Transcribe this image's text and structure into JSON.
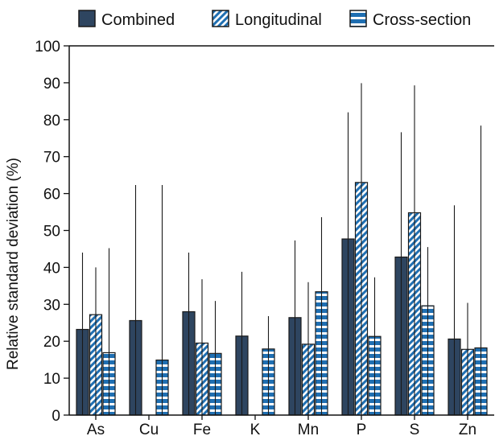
{
  "chart_data": {
    "type": "bar",
    "ylabel": "Relative standard deviation (%)",
    "xlabel": "",
    "ylim": [
      0,
      100
    ],
    "yticks": [
      0,
      10,
      20,
      30,
      40,
      50,
      60,
      70,
      80,
      90,
      100
    ],
    "categories": [
      "As",
      "Cu",
      "Fe",
      "K",
      "Mn",
      "P",
      "S",
      "Zn"
    ],
    "legend_position": "top",
    "series": [
      {
        "name": "Combined",
        "pattern": "solid",
        "color": "#2e4560",
        "values": [
          23.2,
          25.6,
          28.0,
          21.4,
          26.4,
          47.7,
          42.8,
          20.6
        ],
        "error_upper": [
          44.0,
          62.3,
          44.0,
          38.8,
          47.3,
          82.0,
          76.6,
          56.8
        ]
      },
      {
        "name": "Longitudinal",
        "pattern": "diagonal",
        "color": "#1f6fb2",
        "values": [
          27.2,
          null,
          19.5,
          null,
          19.2,
          63.0,
          54.8,
          17.8
        ],
        "error_upper": [
          40.0,
          null,
          36.8,
          null,
          36.0,
          89.9,
          89.3,
          30.4
        ]
      },
      {
        "name": "Cross-section",
        "pattern": "horizontal",
        "color": "#1f6fb2",
        "values": [
          16.9,
          14.9,
          16.7,
          17.9,
          33.4,
          21.3,
          29.6,
          18.2
        ],
        "error_upper": [
          45.2,
          62.3,
          30.9,
          26.8,
          53.6,
          37.3,
          45.5,
          78.4
        ]
      }
    ]
  }
}
